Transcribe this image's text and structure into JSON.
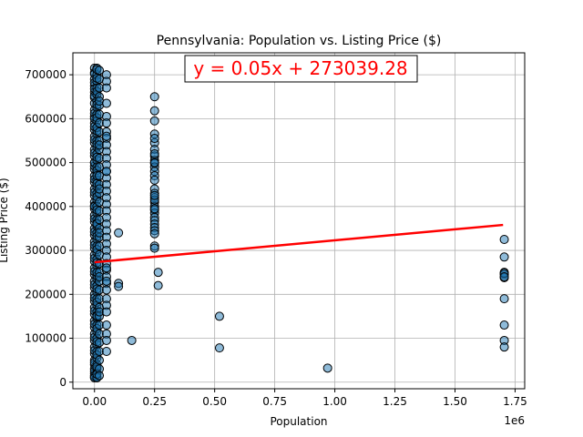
{
  "chart_data": {
    "type": "scatter",
    "title": "Pennsylvania: Population vs. Listing Price ($)",
    "xlabel": "Population",
    "ylabel": "Listing Price ($)",
    "x_offset_label": "1e6",
    "xlim": [
      -90000,
      1790000
    ],
    "ylim": [
      -15000,
      750000
    ],
    "x_ticks": [
      0,
      250000,
      500000,
      750000,
      1000000,
      1250000,
      1500000,
      1750000
    ],
    "x_tick_labels": [
      "0.00",
      "0.25",
      "0.50",
      "0.75",
      "1.00",
      "1.25",
      "1.50",
      "1.75"
    ],
    "y_ticks": [
      0,
      100000,
      200000,
      300000,
      400000,
      500000,
      600000,
      700000
    ],
    "y_tick_labels": [
      "0",
      "100000",
      "200000",
      "300000",
      "400000",
      "500000",
      "600000",
      "700000"
    ],
    "grid": true,
    "annotation": "y = 0.05x + 273039.28",
    "regression": {
      "slope": 0.05,
      "intercept": 273039.28,
      "x_range": [
        0,
        1700000
      ]
    },
    "marker_color": "#1f77b4",
    "line_color": "#ff0000",
    "series": [
      {
        "x": [
          0,
          0,
          0,
          0,
          0,
          0,
          0,
          0,
          0,
          0,
          0,
          0,
          0,
          0,
          0,
          0,
          0,
          0,
          0,
          0,
          0,
          0,
          0,
          0,
          0,
          0,
          0,
          0,
          0,
          0,
          0,
          0,
          0,
          0,
          0,
          0,
          0,
          0,
          0,
          0,
          0,
          0,
          0,
          0,
          0,
          0,
          0,
          0,
          0,
          0,
          0,
          0,
          0,
          0,
          0,
          0,
          0,
          0,
          0,
          0,
          0,
          0,
          0,
          0,
          0,
          0,
          0,
          0,
          0,
          0,
          0,
          0,
          0,
          0,
          0,
          0,
          0,
          0,
          0,
          0,
          10000,
          10000,
          10000,
          10000,
          10000,
          10000,
          10000,
          10000,
          10000,
          10000,
          10000,
          10000,
          10000,
          10000,
          10000,
          10000,
          10000,
          10000,
          10000,
          10000,
          10000,
          10000,
          10000,
          10000,
          10000,
          10000,
          10000,
          10000,
          10000,
          10000,
          10000,
          10000,
          10000,
          10000,
          10000,
          10000,
          10000,
          10000,
          10000,
          10000,
          10000,
          10000,
          10000,
          10000,
          10000,
          10000,
          10000,
          10000,
          10000,
          10000,
          10000,
          10000,
          10000,
          10000,
          10000,
          10000,
          10000,
          10000,
          10000,
          10000,
          10000,
          10000,
          10000,
          10000,
          10000,
          10000,
          10000,
          10000,
          10000,
          10000,
          10000,
          10000,
          10000,
          10000,
          10000,
          10000,
          10000,
          10000,
          10000,
          10000,
          20000,
          20000,
          20000,
          20000,
          20000,
          20000,
          20000,
          20000,
          20000,
          20000,
          20000,
          20000,
          20000,
          20000,
          20000,
          20000,
          20000,
          20000,
          20000,
          20000,
          20000,
          20000,
          20000,
          20000,
          20000,
          20000,
          20000,
          20000,
          20000,
          20000,
          20000,
          20000,
          20000,
          20000,
          20000,
          20000,
          20000,
          20000,
          20000,
          20000,
          20000,
          20000,
          50000,
          50000,
          50000,
          50000,
          50000,
          50000,
          50000,
          50000,
          50000,
          50000,
          50000,
          50000,
          50000,
          50000,
          50000,
          50000,
          50000,
          50000,
          50000,
          50000,
          50000,
          50000,
          50000,
          50000,
          50000,
          50000,
          50000,
          50000,
          50000,
          50000,
          50000,
          50000,
          50000,
          50000,
          50000,
          50000,
          50000,
          50000,
          50000,
          50000,
          50000,
          50000,
          100000,
          100000,
          100000,
          155000,
          250000,
          250000,
          250000,
          250000,
          250000,
          250000,
          250000,
          250000,
          250000,
          250000,
          250000,
          250000,
          250000,
          250000,
          250000,
          250000,
          250000,
          250000,
          250000,
          250000,
          250000,
          250000,
          250000,
          250000,
          250000,
          250000,
          250000,
          250000,
          250000,
          250000,
          250000,
          250000,
          250000,
          250000,
          265000,
          265000,
          520000,
          520000,
          970000,
          1705000,
          1705000,
          1705000,
          1705000,
          1705000,
          1705000,
          1705000,
          1705000,
          1705000,
          1705000,
          1705000
        ],
        "y": [
          715000,
          705000,
          690000,
          675000,
          660000,
          648000,
          635000,
          620000,
          605000,
          590000,
          575000,
          560000,
          545000,
          530000,
          515000,
          500000,
          485000,
          470000,
          455000,
          440000,
          425000,
          410000,
          395000,
          380000,
          365000,
          350000,
          335000,
          320000,
          305000,
          290000,
          275000,
          260000,
          245000,
          230000,
          215000,
          200000,
          185000,
          170000,
          155000,
          140000,
          125000,
          110000,
          95000,
          80000,
          65000,
          50000,
          40000,
          30000,
          20000,
          12000,
          702000,
          682000,
          668000,
          652000,
          612000,
          582000,
          552000,
          522000,
          492000,
          462000,
          432000,
          402000,
          372000,
          342000,
          312000,
          282000,
          252000,
          222000,
          192000,
          162000,
          132000,
          102000,
          72000,
          45000,
          25000,
          15000,
          10000,
          600000,
          500000,
          400000,
          715000,
          700000,
          685000,
          670000,
          655000,
          640000,
          625000,
          610000,
          595000,
          580000,
          565000,
          550000,
          535000,
          520000,
          505000,
          490000,
          475000,
          460000,
          445000,
          430000,
          415000,
          400000,
          385000,
          370000,
          355000,
          340000,
          325000,
          310000,
          295000,
          280000,
          265000,
          250000,
          235000,
          220000,
          205000,
          190000,
          175000,
          160000,
          145000,
          130000,
          115000,
          100000,
          85000,
          70000,
          55000,
          40000,
          30000,
          20000,
          12000,
          10000,
          712000,
          692000,
          662000,
          632000,
          602000,
          572000,
          542000,
          512000,
          482000,
          452000,
          422000,
          392000,
          362000,
          332000,
          302000,
          272000,
          242000,
          212000,
          182000,
          152000,
          122000,
          92000,
          62000,
          35000,
          18000,
          580000,
          470000,
          360000,
          250000,
          150000,
          710000,
          690000,
          670000,
          650000,
          630000,
          610000,
          590000,
          570000,
          550000,
          530000,
          510000,
          490000,
          470000,
          450000,
          430000,
          410000,
          390000,
          370000,
          350000,
          330000,
          310000,
          290000,
          270000,
          250000,
          230000,
          210000,
          190000,
          170000,
          150000,
          130000,
          110000,
          90000,
          70000,
          50000,
          30000,
          15000,
          640000,
          540000,
          440000,
          340000,
          240000,
          160000,
          700000,
          685000,
          670000,
          635000,
          605000,
          590000,
          570000,
          555000,
          540000,
          525000,
          510000,
          495000,
          480000,
          465000,
          450000,
          435000,
          420000,
          405000,
          390000,
          375000,
          360000,
          345000,
          330000,
          315000,
          300000,
          285000,
          270000,
          255000,
          240000,
          225000,
          210000,
          190000,
          175000,
          160000,
          130000,
          110000,
          95000,
          70000,
          230000,
          260000,
          560000,
          480000,
          340000,
          225000,
          218000,
          95000,
          650000,
          618000,
          595000,
          565000,
          545000,
          530000,
          515000,
          505000,
          498000,
          490000,
          480000,
          470000,
          440000,
          430000,
          420000,
          410000,
          400000,
          392000,
          385000,
          375000,
          368000,
          360000,
          352000,
          345000,
          338000,
          310000,
          305000,
          520000,
          460000,
          395000,
          415000,
          425000,
          555000,
          500000,
          250000,
          220000,
          150000,
          78000,
          32000,
          325000,
          285000,
          250000,
          245000,
          238000,
          190000,
          130000,
          95000,
          80000,
          248000,
          240000
        ]
      }
    ]
  }
}
